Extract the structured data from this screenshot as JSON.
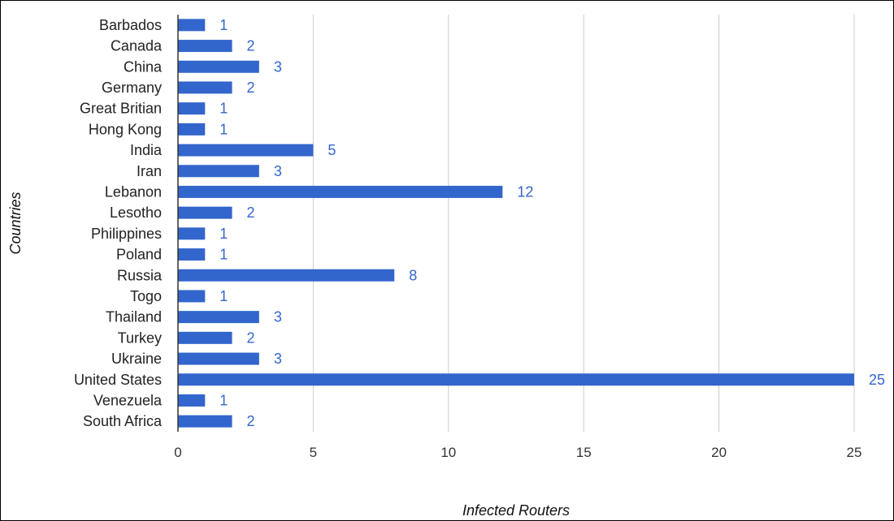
{
  "chart_data": {
    "type": "bar",
    "orientation": "horizontal",
    "title": "",
    "xlabel": "Infected Routers",
    "ylabel": "Countries",
    "xlim": [
      0,
      25
    ],
    "xticks": [
      "0",
      "5",
      "10",
      "15",
      "20",
      "25"
    ],
    "grid": true,
    "legend": "none",
    "categories": [
      "Barbados",
      "Canada",
      "China",
      "Germany",
      "Great Britian",
      "Hong Kong",
      "India",
      "Iran",
      "Lebanon",
      "Lesotho",
      "Philippines",
      "Poland",
      "Russia",
      "Togo",
      "Thailand",
      "Turkey",
      "Ukraine",
      "United States",
      "Venezuela",
      "South Africa"
    ],
    "values": [
      1,
      2,
      3,
      2,
      1,
      1,
      5,
      3,
      12,
      2,
      1,
      1,
      8,
      1,
      3,
      2,
      3,
      25,
      1,
      2
    ],
    "data_labels": [
      "1",
      "2",
      "3",
      "2",
      "1",
      "1",
      "5",
      "3",
      "12",
      "2",
      "1",
      "1",
      "8",
      "1",
      "3",
      "2",
      "3",
      "25",
      "1",
      "2"
    ],
    "bar_color": "#3366cc",
    "grid_color": "#cccccc",
    "axis_color": "#333333"
  }
}
